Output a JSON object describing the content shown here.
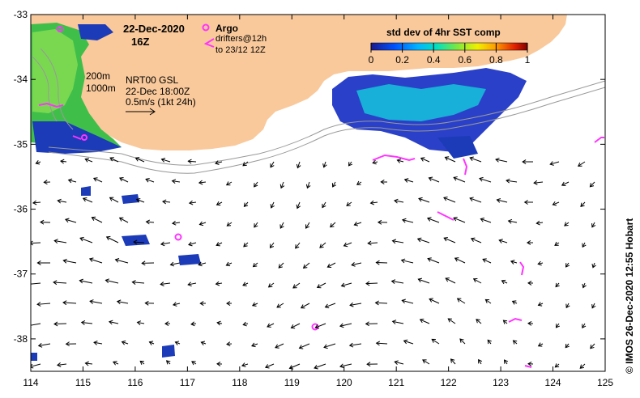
{
  "map": {
    "date": "22-Dec-2020",
    "time": "16Z",
    "argo_label": "Argo",
    "drifters_line1": "drifters@12h",
    "drifters_line2": "to 23/12 12Z",
    "contour_200": "200m",
    "contour_1000": "1000m",
    "product_line1": "NRT00 GSL",
    "product_line2": "22-Dec 18:00Z",
    "product_line3": "0.5m/s (1kt 24h)",
    "credit": "© IMOS 26-Dec-2020 12:55 Hobart",
    "colorbar": {
      "title": "std dev of 4hr SST comp",
      "ticks": [
        "0",
        "0.2",
        "0.4",
        "0.6",
        "0.8",
        "1"
      ],
      "range": [
        0,
        1
      ]
    },
    "x_ticks": [
      "114",
      "115",
      "116",
      "117",
      "118",
      "119",
      "120",
      "121",
      "122",
      "123",
      "124",
      "125"
    ],
    "y_ticks": [
      "-33",
      "-34",
      "-35",
      "-36",
      "-37",
      "-38"
    ],
    "lon_range": [
      114,
      125
    ],
    "lat_range": [
      -38.5,
      -33
    ],
    "colors": {
      "land": "#f9c99b",
      "argo": "#ff33ff",
      "drifter": "#ff33ff",
      "contour": "#999999",
      "arrow": "#000000"
    },
    "argo_floats": [
      {
        "lon": 116.8,
        "lat": -36.45
      },
      {
        "lon": 119.45,
        "lat": -37.85
      }
    ]
  }
}
